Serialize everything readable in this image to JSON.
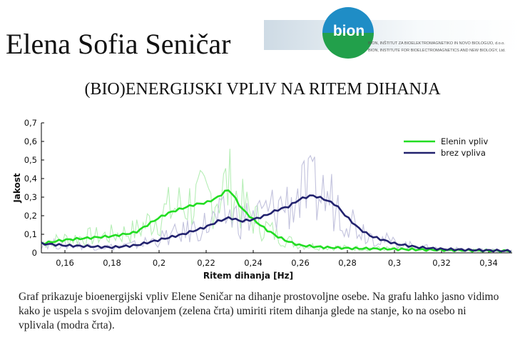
{
  "header": {
    "author": "Elena Sofia Seničar",
    "title": "(BIO)ENERGIJSKI VPLIV NA RITEM DIHANJA"
  },
  "logo": {
    "word": "bion",
    "line1": "BION, INŠTITUT ZA BIOELEKTROMAGNETIKO IN NOVO BIOLOGIJO, d.o.o.",
    "line2": "BION, INSTITUTE FOR BIOELECTROMAGNETICS AND NEW BIOLOGY, Ltd.",
    "colors": {
      "top": "#1f8dc6",
      "bottom": "#22a04b"
    }
  },
  "caption": "Graf prikazuje bioenergijski vpliv Elene Seničar na dihanje prostovoljne osebe. Na grafu lahko jasno vidimo kako je uspela s svojim delovanjem (zelena črta) umiriti ritem dihanja glede na stanje, ko na osebo ni vplivala (modra črta).",
  "chart_data": {
    "type": "line",
    "xlabel": "Ritem dihanja [Hz]",
    "ylabel": "Jakost",
    "xlim": [
      0.15,
      0.35
    ],
    "ylim": [
      0,
      0.7
    ],
    "xticks": [
      0.16,
      0.18,
      0.2,
      0.22,
      0.24,
      0.26,
      0.28,
      0.3,
      0.32,
      0.34
    ],
    "xtick_labels": [
      "0,16",
      "0,18",
      "0,2",
      "0,22",
      "0,24",
      "0,26",
      "0,28",
      "0,3",
      "0,32",
      "0,34"
    ],
    "yticks": [
      0,
      0.1,
      0.2,
      0.3,
      0.4,
      0.5,
      0.6,
      0.7
    ],
    "ytick_labels": [
      "0",
      "0,1",
      "0,2",
      "0,3",
      "0,4",
      "0,5",
      "0,6",
      "0,7"
    ],
    "legend_position": "top-right",
    "series": [
      {
        "name": "Elenin vpliv",
        "color": "#22dd22",
        "raw_color": "#b6eeb6",
        "x": [
          0.15,
          0.16,
          0.17,
          0.18,
          0.19,
          0.195,
          0.2,
          0.205,
          0.21,
          0.215,
          0.22,
          0.225,
          0.228,
          0.23,
          0.232,
          0.235,
          0.24,
          0.245,
          0.25,
          0.255,
          0.26,
          0.27,
          0.28,
          0.3,
          0.32,
          0.35
        ],
        "values": [
          0.05,
          0.07,
          0.08,
          0.09,
          0.11,
          0.15,
          0.19,
          0.22,
          0.24,
          0.26,
          0.27,
          0.3,
          0.33,
          0.34,
          0.3,
          0.24,
          0.18,
          0.13,
          0.09,
          0.06,
          0.04,
          0.03,
          0.025,
          0.02,
          0.015,
          0.01
        ]
      },
      {
        "name": "brez vpliva",
        "color": "#22226e",
        "raw_color": "#c2c2dd",
        "x": [
          0.15,
          0.16,
          0.17,
          0.18,
          0.19,
          0.2,
          0.21,
          0.22,
          0.225,
          0.23,
          0.235,
          0.24,
          0.245,
          0.25,
          0.255,
          0.26,
          0.265,
          0.27,
          0.275,
          0.28,
          0.285,
          0.29,
          0.3,
          0.31,
          0.32,
          0.35
        ],
        "values": [
          0.05,
          0.04,
          0.035,
          0.03,
          0.04,
          0.07,
          0.1,
          0.14,
          0.17,
          0.19,
          0.17,
          0.18,
          0.2,
          0.23,
          0.25,
          0.29,
          0.31,
          0.29,
          0.26,
          0.19,
          0.13,
          0.09,
          0.05,
          0.03,
          0.02,
          0.01
        ]
      }
    ]
  }
}
